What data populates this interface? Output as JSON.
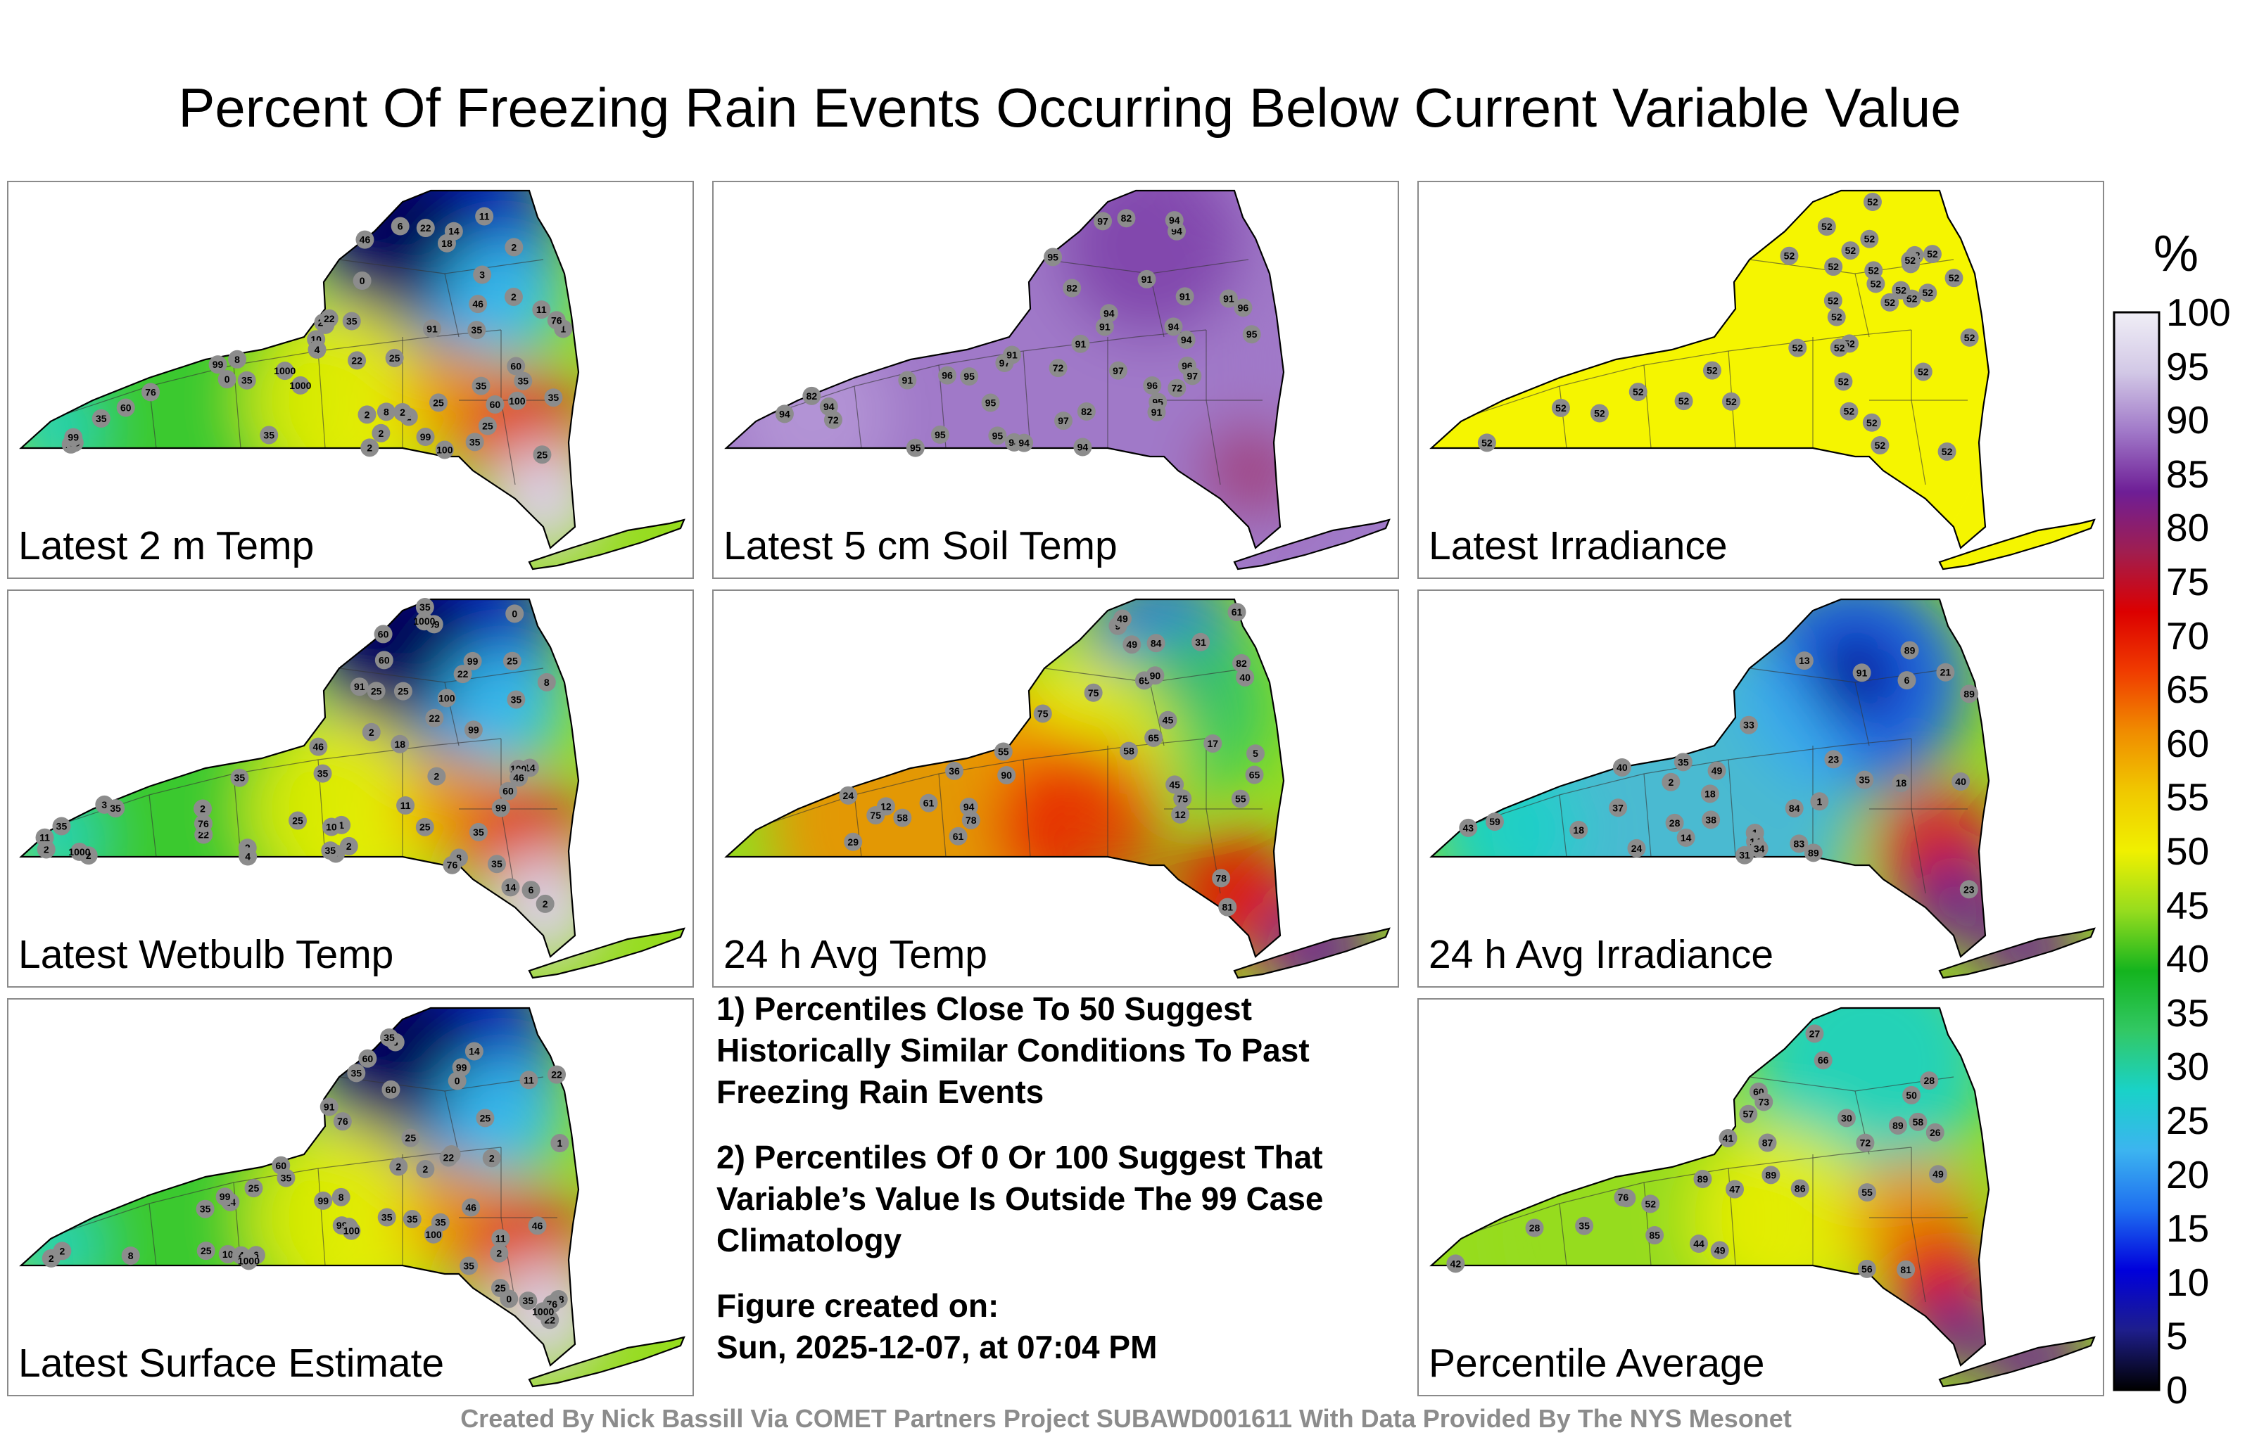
{
  "title": "Percent Of Freezing Rain Events Occurring Below Current Variable Value",
  "panels": [
    {
      "label": "Latest 2 m Temp",
      "scheme": "t2m"
    },
    {
      "label": "Latest 5 cm Soil Temp",
      "scheme": "soil"
    },
    {
      "label": "Latest Irradiance",
      "scheme": "irr"
    },
    {
      "label": "Latest Wetbulb Temp",
      "scheme": "t2m"
    },
    {
      "label": "24 h Avg Temp",
      "scheme": "avgt"
    },
    {
      "label": "24 h Avg Irradiance",
      "scheme": "avgirr"
    },
    {
      "label": "Latest Surface Estimate",
      "scheme": "t2m"
    },
    {
      "label": "Percentile Average",
      "scheme": "avg"
    }
  ],
  "notes": {
    "n1": "1) Percentiles Close To 50 Suggest Historically Similar Conditions To Past Freezing Rain Events",
    "n2": "2) Percentiles Of 0 Or 100 Suggest That Variable’s Value Is Outside The 99 Case Climatology",
    "created_label": "Figure created on:",
    "created_value": "Sun, 2025-12-07, at 07:04 PM"
  },
  "colorbar": {
    "unit": "%",
    "ticks": [
      "100",
      "95",
      "90",
      "85",
      "80",
      "75",
      "70",
      "65",
      "60",
      "55",
      "50",
      "45",
      "40",
      "35",
      "30",
      "25",
      "20",
      "15",
      "10",
      "5",
      "0"
    ],
    "stops": [
      "#000000",
      "#1e1e8c",
      "#0000dc",
      "#1e6ef0",
      "#3cb4f0",
      "#19d2c8",
      "#32c864",
      "#14b41e",
      "#96dc1e",
      "#f0f000",
      "#f0c800",
      "#f08c00",
      "#f03c00",
      "#dc0000",
      "#a01e50",
      "#6e1e96",
      "#a078c8",
      "#d2c8e6",
      "#f0eef6"
    ],
    "colors": {
      "yellow": "#f5f500",
      "purple": "#a079c8",
      "blue": "#0014c8",
      "red": "#e60000",
      "lavender": "#dcd2ee",
      "marker": "#8c8c8c"
    }
  },
  "stations": {
    "t2m": [
      "2",
      "0",
      "0",
      "2",
      "2",
      "1",
      "2",
      "2",
      "8",
      "6",
      "2",
      "2",
      "11",
      "10",
      "4",
      "3",
      "2",
      "14",
      "22",
      "25",
      "8",
      "35",
      "22",
      "25",
      "35",
      "35",
      "35",
      "35",
      "35",
      "46",
      "60",
      "76",
      "35",
      "25",
      "18",
      "35",
      "99",
      "35",
      "11",
      "14",
      "25",
      "60",
      "91",
      "99",
      "60",
      "99",
      "76",
      "99",
      "100",
      "1000",
      "100",
      "1000",
      "22",
      "46",
      "25"
    ],
    "soil": [
      "82",
      "91",
      "94",
      "72",
      "91",
      "94",
      "94",
      "97",
      "91",
      "82",
      "95",
      "94",
      "91",
      "72",
      "82",
      "95",
      "96",
      "94",
      "97",
      "95",
      "94",
      "91",
      "94",
      "95",
      "96",
      "95",
      "91",
      "72",
      "91",
      "82",
      "97",
      "95",
      "95",
      "94",
      "96",
      "94",
      "91",
      "95",
      "97",
      "96",
      "97",
      "94"
    ],
    "irr": [
      "52",
      "52",
      "52",
      "52",
      "52",
      "52",
      "52",
      "52",
      "52",
      "52",
      "52",
      "52",
      "52",
      "52",
      "52",
      "52",
      "52",
      "52",
      "52",
      "52",
      "52",
      "52",
      "52",
      "52",
      "52",
      "52",
      "52",
      "52",
      "52",
      "52",
      "52",
      "52",
      "52",
      "52",
      "52",
      "52"
    ],
    "avgt": [
      "12",
      "9",
      "5",
      "17",
      "24",
      "12",
      "29",
      "31",
      "36",
      "45",
      "49",
      "55",
      "40",
      "45",
      "65",
      "75",
      "78",
      "61",
      "75",
      "58",
      "61",
      "65",
      "49",
      "58",
      "82",
      "78",
      "81",
      "65",
      "75",
      "90",
      "94",
      "90",
      "84",
      "61",
      "75",
      "55"
    ],
    "avgirr": [
      "33",
      "40",
      "35",
      "31",
      "18",
      "35",
      "13",
      "23",
      "1",
      "6",
      "1",
      "2",
      "14",
      "14",
      "24",
      "38",
      "28",
      "37",
      "21",
      "40",
      "34",
      "18",
      "23",
      "43",
      "83",
      "59",
      "89",
      "91",
      "89",
      "89",
      "84",
      "18",
      "49"
    ],
    "avg": [
      "27",
      "28",
      "26",
      "30",
      "28",
      "35",
      "39",
      "42",
      "47",
      "50",
      "56",
      "55",
      "49",
      "57",
      "44",
      "41",
      "58",
      "72",
      "60",
      "66",
      "73",
      "81",
      "76",
      "85",
      "87",
      "86",
      "89",
      "89",
      "89",
      "49",
      "52"
    ]
  },
  "credit": "Created By Nick Bassill Via COMET Partners Project SUBAWD001611 With Data Provided By The NYS Mesonet"
}
